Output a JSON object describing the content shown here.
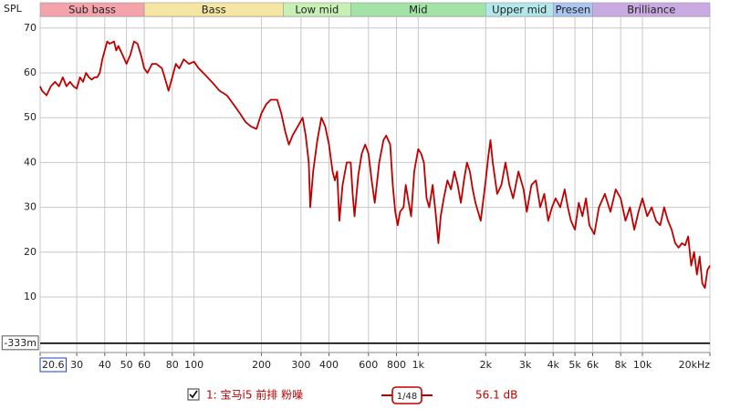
{
  "chart_data": {
    "type": "line",
    "y_label": "SPL",
    "xscale": "log",
    "xlim": [
      20.6,
      20000
    ],
    "ylim": [
      -2.4,
      72.6
    ],
    "xticks": [
      20.6,
      30,
      40,
      50,
      60,
      80,
      100,
      200,
      300,
      400,
      600,
      800,
      {
        "value": 1000,
        "label": "1k"
      },
      {
        "value": 2000,
        "label": "2k"
      },
      {
        "value": 3000,
        "label": "3k"
      },
      {
        "value": 4000,
        "label": "4k"
      },
      {
        "value": 5000,
        "label": "5k"
      },
      {
        "value": 6000,
        "label": "6k"
      },
      {
        "value": 8000,
        "label": "8k"
      },
      {
        "value": 10000,
        "label": "10k"
      },
      {
        "value": 20000,
        "label": "20kHz"
      }
    ],
    "yticks": [
      {
        "value": -0.333,
        "label": "-333m"
      },
      10,
      20,
      30,
      40,
      50,
      60,
      70
    ],
    "grid": true,
    "bands": [
      {
        "name": "Sub bass",
        "from": 20.6,
        "to": 60,
        "color": "#f4a3ab"
      },
      {
        "name": "Bass",
        "from": 60,
        "to": 250,
        "color": "#f5e6a3"
      },
      {
        "name": "Low mid",
        "from": 250,
        "to": 500,
        "color": "#c9f0b3"
      },
      {
        "name": "Mid",
        "from": 500,
        "to": 2000,
        "color": "#a3e3a6"
      },
      {
        "name": "Upper mid",
        "from": 2000,
        "to": 4000,
        "color": "#b3e8ea"
      },
      {
        "name": "Presen",
        "from": 4000,
        "to": 6000,
        "color": "#abc6f2"
      },
      {
        "name": "Brilliance",
        "from": 6000,
        "to": 20000,
        "color": "#c9aae2"
      }
    ],
    "smoothing": "1/48",
    "level": "56.1 dB",
    "x": [
      20.6,
      21,
      22,
      23,
      24,
      25,
      26,
      27,
      28,
      29,
      30,
      31,
      32,
      33,
      34,
      35,
      36,
      37,
      38,
      39,
      40,
      41,
      42,
      44,
      45,
      46,
      48,
      50,
      52,
      54,
      56,
      58,
      60,
      62,
      65,
      68,
      72,
      75,
      77,
      80,
      83,
      86,
      90,
      95,
      100,
      105,
      110,
      120,
      130,
      140,
      150,
      160,
      170,
      180,
      190,
      200,
      210,
      220,
      235,
      245,
      255,
      265,
      275,
      290,
      305,
      315,
      325,
      330,
      340,
      355,
      370,
      385,
      400,
      415,
      425,
      435,
      445,
      460,
      480,
      500,
      510,
      520,
      540,
      560,
      580,
      600,
      620,
      640,
      670,
      700,
      720,
      750,
      770,
      790,
      810,
      830,
      860,
      880,
      900,
      930,
      960,
      1000,
      1030,
      1060,
      1090,
      1120,
      1160,
      1200,
      1230,
      1260,
      1300,
      1350,
      1400,
      1450,
      1500,
      1550,
      1600,
      1650,
      1700,
      1750,
      1800,
      1900,
      2000,
      2050,
      2100,
      2150,
      2250,
      2350,
      2450,
      2550,
      2650,
      2800,
      2950,
      3050,
      3200,
      3350,
      3500,
      3650,
      3800,
      3950,
      4100,
      4300,
      4500,
      4650,
      4800,
      5000,
      5200,
      5400,
      5600,
      5800,
      6100,
      6400,
      6800,
      7200,
      7600,
      8000,
      8400,
      8800,
      9200,
      9600,
      10000,
      10500,
      11000,
      11500,
      12000,
      12500,
      13000,
      13500,
      14000,
      14500,
      15000,
      15500,
      16000,
      16500,
      17000,
      17500,
      18000,
      18500,
      19000,
      19500,
      20000
    ],
    "series": [
      {
        "name": "1: 宝马i5 前排 粉噪",
        "color": "#c00000",
        "values": [
          57,
          56,
          55,
          57,
          58,
          57,
          59,
          57,
          58,
          57,
          56.5,
          59,
          58,
          60,
          59,
          58.5,
          59,
          59,
          60,
          63,
          65,
          67,
          66.5,
          67,
          65,
          66,
          64,
          62,
          64,
          67,
          66.5,
          64,
          61,
          60,
          62,
          62,
          61,
          58,
          56,
          59,
          62,
          61,
          63,
          62,
          62.5,
          61,
          60,
          58,
          56,
          55,
          53,
          51,
          49,
          48,
          47.5,
          51,
          53,
          54,
          54,
          51,
          47,
          44,
          46,
          48,
          50,
          46,
          40,
          30,
          38,
          45,
          50,
          48,
          44,
          38,
          36,
          38,
          27,
          35,
          40,
          40,
          33,
          28,
          37,
          42,
          44,
          42,
          36,
          31,
          40,
          45,
          46,
          44,
          35,
          29,
          26,
          29,
          30,
          35,
          32,
          28,
          38,
          43,
          42,
          40,
          32,
          30,
          35,
          28,
          22,
          28,
          32,
          36,
          34,
          38,
          35,
          31,
          36,
          40,
          38,
          34,
          31,
          27,
          36,
          41,
          45,
          40,
          33,
          35,
          40,
          35,
          32,
          38,
          34,
          29,
          35,
          36,
          30,
          33,
          27,
          30,
          32,
          30,
          34,
          30,
          27,
          25,
          31,
          28,
          32,
          26,
          24,
          30,
          33,
          29,
          34,
          32,
          27,
          30,
          25,
          29,
          32,
          28,
          30,
          27,
          26,
          30,
          27,
          25,
          22,
          21,
          22,
          21.5,
          23.5,
          17,
          20,
          15,
          19,
          13,
          12,
          16,
          17
        ]
      }
    ]
  }
}
